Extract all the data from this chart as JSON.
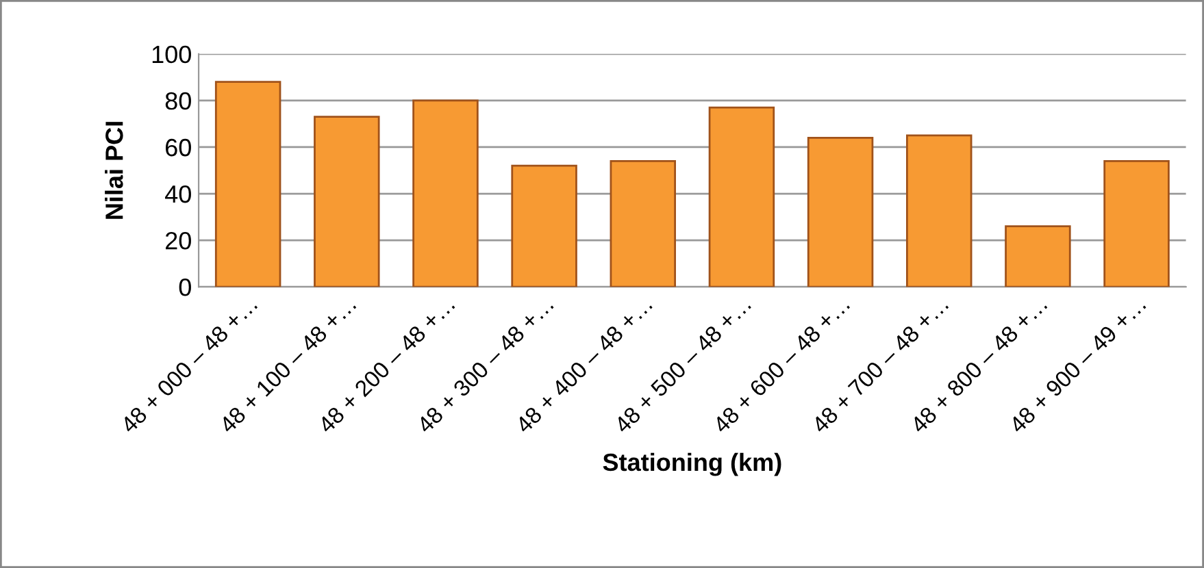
{
  "chart_data": {
    "type": "bar",
    "xlabel": "Stationing (km)",
    "ylabel": "Nilai PCI",
    "categories": [
      "48 + 000 – 48 +…",
      "48 + 100 – 48 +…",
      "48 + 200 – 48 +…",
      "48 + 300 – 48 +…",
      "48 + 400 – 48 +…",
      "48 + 500 – 48 +…",
      "48 + 600 – 48 +…",
      "48 + 700 – 48 +…",
      "48 + 800 – 48 +…",
      "48 + 900 – 49 +…"
    ],
    "values": [
      88,
      73,
      80,
      52,
      54,
      77,
      64,
      65,
      26,
      54
    ],
    "color": "#f79a33",
    "ylim": [
      0,
      100
    ],
    "yticks": [
      0,
      20,
      40,
      60,
      80,
      100
    ],
    "grid": "y",
    "legend": false
  }
}
